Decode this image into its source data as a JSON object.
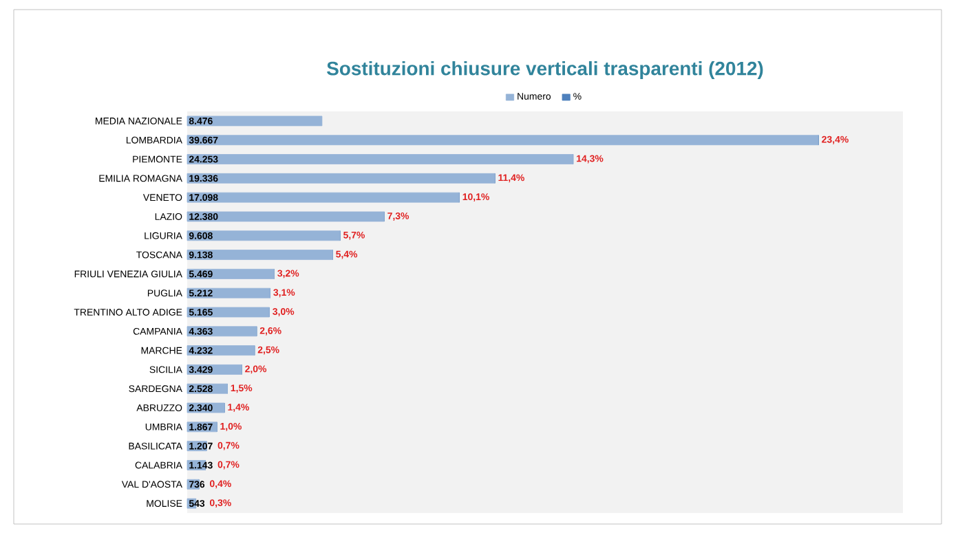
{
  "chart_data": {
    "type": "bar",
    "orientation": "horizontal",
    "stacked": true,
    "title": "Sostituzioni chiusure verticali trasparenti (2012)",
    "categories": [
      "MEDIA NAZIONALE",
      "LOMBARDIA",
      "PIEMONTE",
      "EMILIA ROMAGNA",
      "VENETO",
      "LAZIO",
      "LIGURIA",
      "TOSCANA",
      "FRIULI VENEZIA GIULIA",
      "PUGLIA",
      "TRENTINO ALTO ADIGE",
      "CAMPANIA",
      "MARCHE",
      "SICILIA",
      "SARDEGNA",
      "ABRUZZO",
      "UMBRIA",
      "BASILICATA",
      "CALABRIA",
      "VAL D'AOSTA",
      "MOLISE"
    ],
    "series": [
      {
        "name": "Numero",
        "color": "#95b3d7",
        "values": [
          8476,
          39667,
          24253,
          19336,
          17098,
          12380,
          9608,
          9138,
          5469,
          5212,
          5165,
          4363,
          4232,
          3429,
          2528,
          2340,
          1867,
          1207,
          1143,
          736,
          543
        ],
        "value_labels": [
          "8.476",
          "39.667",
          "24.253",
          "19.336",
          "17.098",
          "12.380",
          "9.608",
          "9.138",
          "5.469",
          "5.212",
          "5.165",
          "4.363",
          "4.232",
          "3.429",
          "2.528",
          "2.340",
          "1.867",
          "1.207",
          "1.143",
          "736",
          "543"
        ]
      },
      {
        "name": "%",
        "color": "#4f81bd",
        "values": [
          null,
          23.4,
          14.3,
          11.4,
          10.1,
          7.3,
          5.7,
          5.4,
          3.2,
          3.1,
          3.0,
          2.6,
          2.5,
          2.0,
          1.5,
          1.4,
          1.0,
          0.7,
          0.7,
          0.4,
          0.3
        ],
        "value_labels": [
          null,
          "23,4%",
          "14,3%",
          "11,4%",
          "10,1%",
          "7,3%",
          "5,7%",
          "5,4%",
          "3,2%",
          "3,1%",
          "3,0%",
          "2,6%",
          "2,5%",
          "2,0%",
          "1,5%",
          "1,4%",
          "1,0%",
          "0,7%",
          "0,7%",
          "0,4%",
          "0,3%"
        ]
      }
    ],
    "xlim": [
      0,
      45000
    ],
    "tick_labels": "y",
    "legend": "top",
    "grid": false
  }
}
